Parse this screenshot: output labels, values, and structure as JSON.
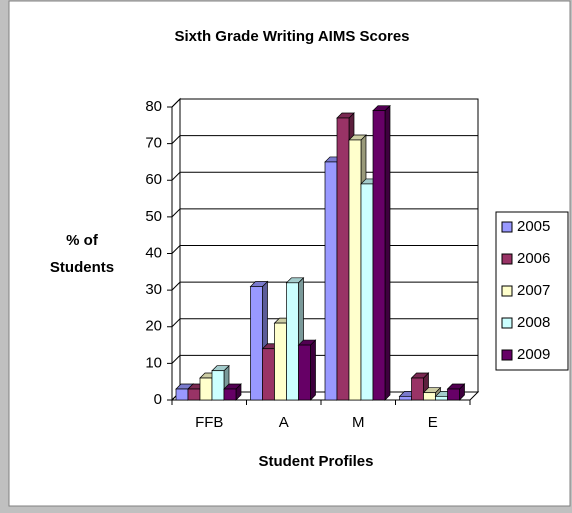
{
  "chart_data": {
    "type": "bar",
    "title": "Sixth Grade Writing AIMS Scores",
    "y_label_lines": [
      "% of",
      "Students"
    ],
    "x_label": "Student Profiles",
    "categories": [
      "FFB",
      "A",
      "M",
      "E"
    ],
    "series": [
      {
        "name": "2005",
        "color": "#9999ff",
        "values": [
          3,
          31,
          65,
          1
        ]
      },
      {
        "name": "2006",
        "color": "#993366",
        "values": [
          3,
          14,
          77,
          6
        ]
      },
      {
        "name": "2007",
        "color": "#ffffcc",
        "values": [
          6,
          21,
          71,
          2
        ]
      },
      {
        "name": "2008",
        "color": "#ccffff",
        "values": [
          8,
          32,
          59,
          1
        ]
      },
      {
        "name": "2009",
        "color": "#660066",
        "values": [
          3,
          15,
          79,
          3
        ]
      }
    ],
    "ylim": [
      0,
      80
    ],
    "yticks": [
      0,
      10,
      20,
      30,
      40,
      50,
      60,
      70,
      80
    ],
    "grid": true,
    "legend": "right"
  }
}
